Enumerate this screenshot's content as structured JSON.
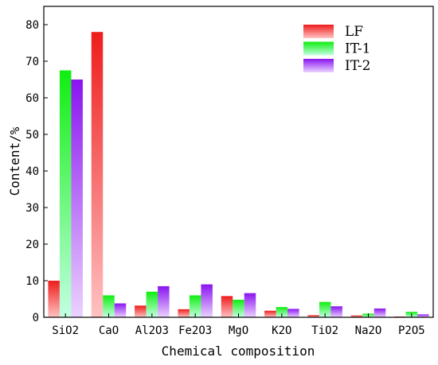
{
  "chart_data": {
    "type": "bar",
    "xlabel": "Chemical composition",
    "ylabel": "Content/%",
    "ylim": [
      0,
      85
    ],
    "yticks": [
      0,
      10,
      20,
      30,
      40,
      50,
      60,
      70,
      80
    ],
    "grid": false,
    "legend_position": "top-right",
    "categories": [
      "SiO2",
      "CaO",
      "Al2O3",
      "Fe2O3",
      "MgO",
      "K2O",
      "TiO2",
      "Na2O",
      "P2O5"
    ],
    "series": [
      {
        "name": "LF",
        "color_top": "#ee1c1c",
        "color_bottom": "#ffc2c2",
        "values": [
          10.0,
          78.0,
          3.2,
          2.2,
          5.8,
          1.8,
          0.6,
          0.5,
          0.2
        ]
      },
      {
        "name": "IT-1",
        "color_top": "#10ee10",
        "color_bottom": "#c2ffe2",
        "values": [
          67.5,
          6.0,
          7.0,
          6.0,
          4.8,
          2.8,
          4.2,
          1.0,
          1.5
        ]
      },
      {
        "name": "IT-2",
        "color_top": "#8a14f0",
        "color_bottom": "#ebd2ff",
        "values": [
          65.0,
          3.8,
          8.5,
          9.0,
          6.6,
          2.3,
          3.0,
          2.4,
          0.8
        ]
      }
    ]
  }
}
